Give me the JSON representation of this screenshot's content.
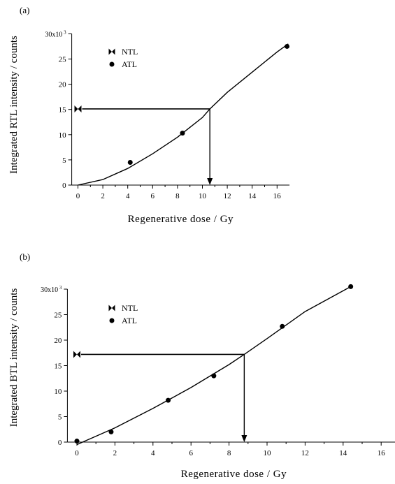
{
  "chart_data": [
    {
      "type": "scatter",
      "panel_label": "(a)",
      "xlabel": "Regenerative dose / Gy",
      "ylabel": "Integrated RTL intensity / counts",
      "y_exponent_label": "30x10",
      "y_exponent_sup": "3",
      "xlim": [
        -0.5,
        17
      ],
      "ylim": [
        0,
        30
      ],
      "x_ticks": [
        0,
        2,
        4,
        6,
        8,
        10,
        12,
        14,
        16
      ],
      "y_ticks": [
        0,
        5,
        10,
        15,
        20,
        25
      ],
      "legend": {
        "position": "top-left",
        "entries": [
          "NTL",
          "ATL"
        ]
      },
      "series": [
        {
          "name": "ATL",
          "marker": "circle",
          "x": [
            4.2,
            8.4,
            16.8
          ],
          "y": [
            4.5,
            10.3,
            27.5
          ]
        },
        {
          "name": "NTL",
          "marker": "bowtie",
          "x": [
            0
          ],
          "y": [
            15.1
          ]
        }
      ],
      "fit_curve": {
        "x": [
          0,
          2,
          4,
          6,
          8,
          10,
          10.6,
          12,
          14,
          16,
          16.9
        ],
        "y": [
          0,
          1.1,
          3.3,
          6.2,
          9.5,
          13.4,
          15.1,
          18.4,
          22.4,
          26.4,
          28.0
        ]
      },
      "interpolation": {
        "ntl_value": 15.1,
        "equivalent_dose": 10.6
      },
      "grid": false
    },
    {
      "type": "scatter",
      "panel_label": "(b)",
      "xlabel": "Regenerative dose / Gy",
      "ylabel": "Integrated BTL intensity / counts",
      "y_exponent_label": "30x10",
      "y_exponent_sup": "3",
      "xlim": [
        -0.5,
        17
      ],
      "ylim": [
        0,
        30
      ],
      "x_ticks": [
        0,
        2,
        4,
        6,
        8,
        10,
        12,
        14,
        16
      ],
      "y_ticks": [
        0,
        5,
        10,
        15,
        20,
        25
      ],
      "legend": {
        "position": "top-left",
        "entries": [
          "NTL",
          "ATL"
        ]
      },
      "series": [
        {
          "name": "ATL",
          "marker": "circle",
          "x": [
            0,
            1.8,
            4.8,
            7.2,
            10.8,
            14.4
          ],
          "y": [
            0.2,
            2,
            8.2,
            13,
            22.7,
            30.5
          ]
        },
        {
          "name": "NTL",
          "marker": "bowtie",
          "x": [
            0
          ],
          "y": [
            17.2
          ]
        }
      ],
      "fit_curve": {
        "x": [
          0,
          2,
          4,
          6,
          8,
          8.8,
          10,
          12,
          14.4
        ],
        "y": [
          -0.5,
          2.8,
          6.6,
          10.7,
          15.2,
          17.2,
          20.3,
          25.6,
          30.5
        ]
      },
      "interpolation": {
        "ntl_value": 17.2,
        "equivalent_dose": 8.8
      },
      "grid": false
    }
  ]
}
